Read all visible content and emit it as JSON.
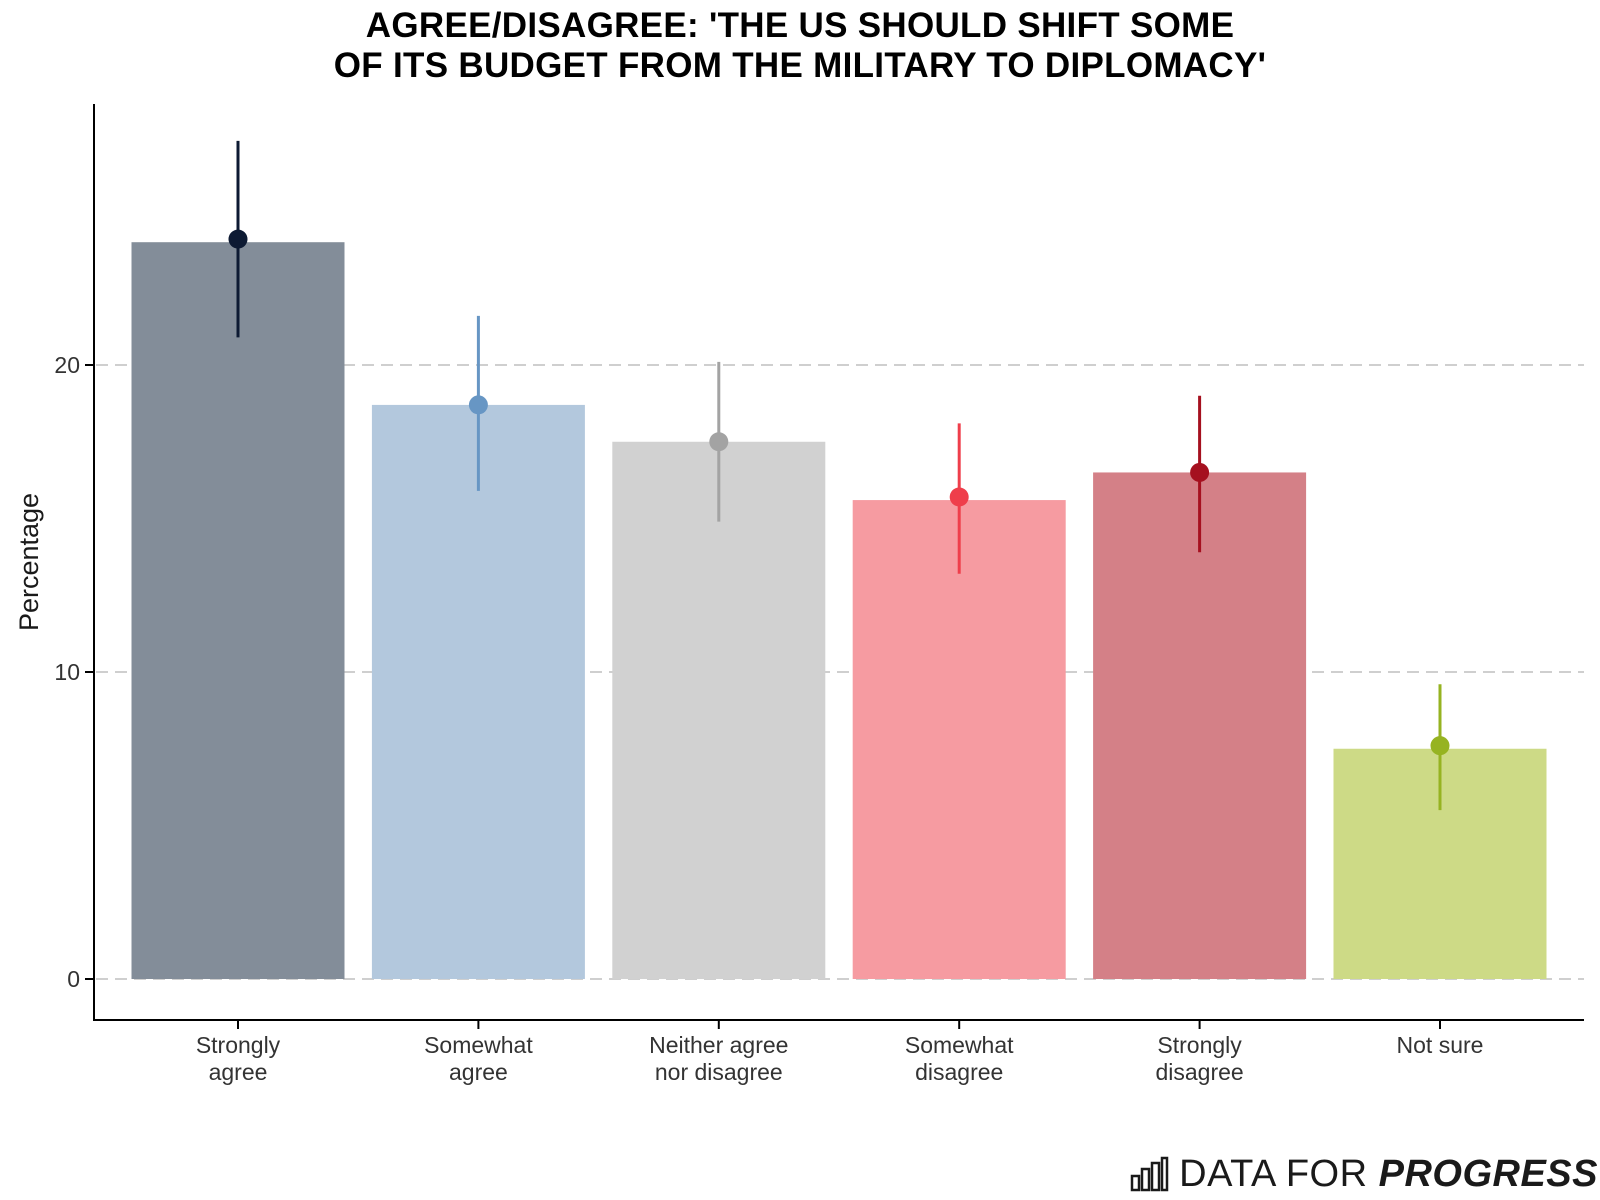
{
  "chart_data": {
    "type": "bar",
    "title_lines": [
      "AGREE/DISAGREE: 'THE US SHOULD SHIFT SOME",
      "OF ITS BUDGET FROM THE MILITARY TO DIPLOMACY'"
    ],
    "xlabel": "",
    "ylabel": "Percentage",
    "ylim": [
      -1.4,
      28.5
    ],
    "yticks": [
      0,
      10,
      20
    ],
    "grid": "horizontal dashed",
    "categories": [
      [
        "Strongly",
        "agree"
      ],
      [
        "Somewhat",
        "agree"
      ],
      [
        "Neither agree",
        "nor disagree"
      ],
      [
        "Somewhat",
        "disagree"
      ],
      [
        "Strongly",
        "disagree"
      ],
      [
        "Not sure"
      ]
    ],
    "values": [
      24.0,
      18.7,
      17.5,
      15.6,
      16.5,
      7.5
    ],
    "points": [
      24.1,
      18.7,
      17.5,
      15.7,
      16.5,
      7.6
    ],
    "error_low": [
      20.9,
      15.9,
      14.9,
      13.2,
      13.9,
      5.5
    ],
    "error_high": [
      27.3,
      21.6,
      20.1,
      18.1,
      19.0,
      9.6
    ],
    "bar_colors": [
      "#838d99",
      "#b3c8dd",
      "#d1d1d1",
      "#f69ba1",
      "#d48087",
      "#cdda86"
    ],
    "point_colors": [
      "#0d1a33",
      "#6796c4",
      "#a3a3a3",
      "#ef3e4b",
      "#a5101f",
      "#96b321"
    ]
  },
  "branding": {
    "light": "DATA FOR ",
    "bold": "PROGRESS",
    "icon": "bar-chart-logo-icon"
  }
}
